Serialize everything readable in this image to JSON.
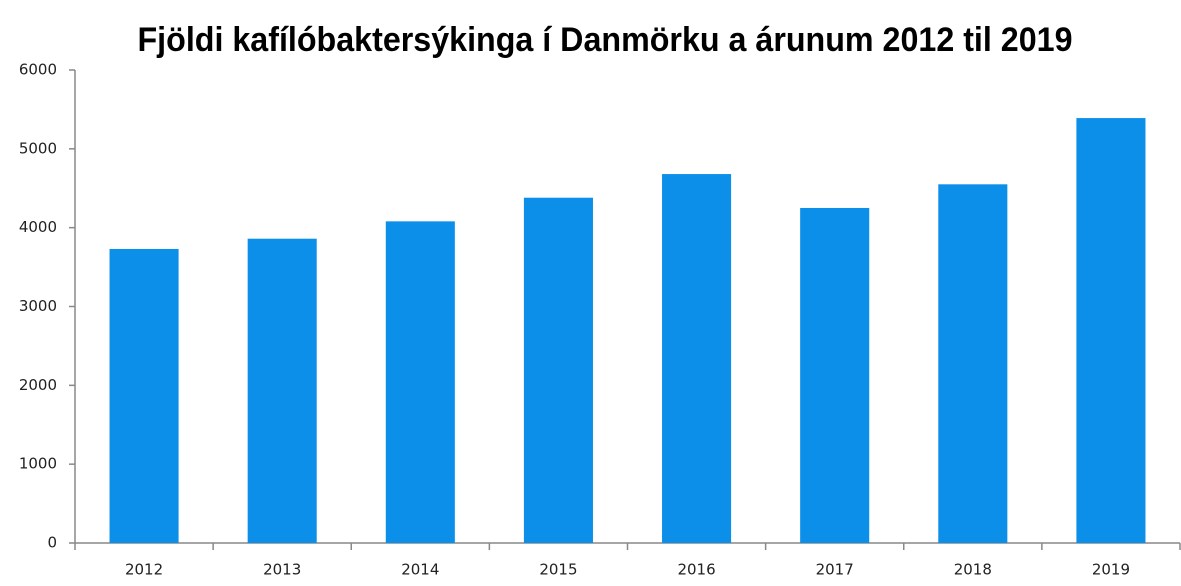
{
  "chart_data": {
    "type": "bar",
    "title": "Fjöldi kafílóbaktersýkinga í Danmörku a árunum 2012 til 2019",
    "categories": [
      "2012",
      "2013",
      "2014",
      "2015",
      "2016",
      "2017",
      "2018",
      "2019"
    ],
    "values": [
      3730,
      3860,
      4080,
      4380,
      4680,
      4250,
      4550,
      5390
    ],
    "color": "#0b8fe8",
    "ylim": [
      0,
      6000
    ],
    "yticks": [
      0,
      1000,
      2000,
      3000,
      4000,
      5000,
      6000
    ],
    "grid": false
  }
}
